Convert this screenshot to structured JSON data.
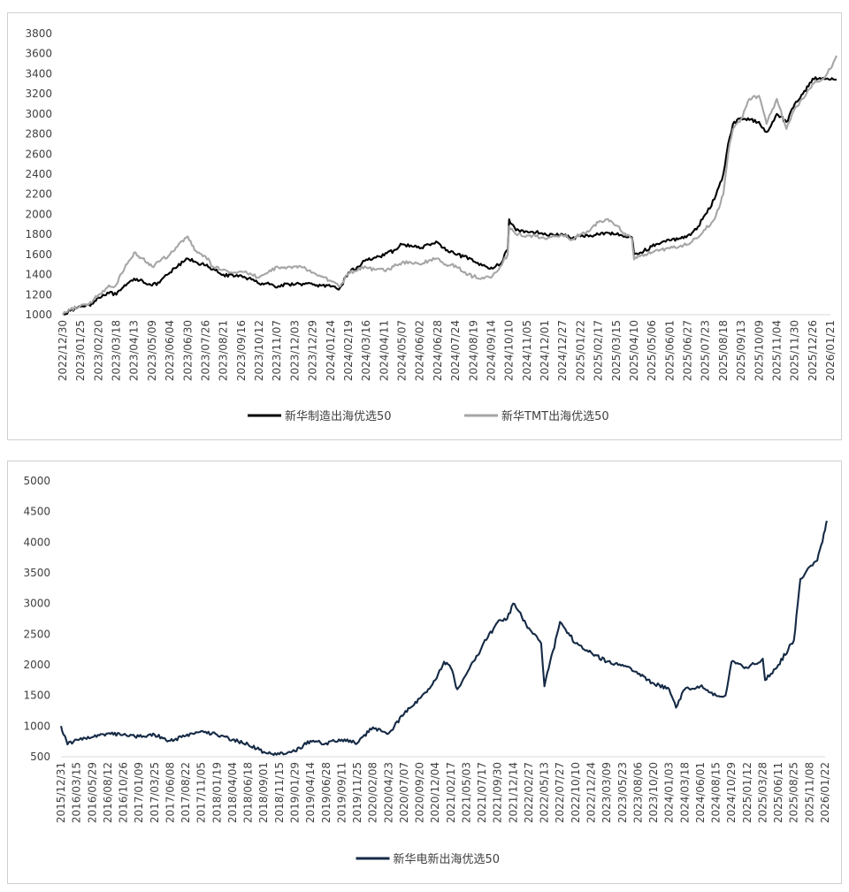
{
  "chart_data": [
    {
      "type": "line",
      "title": "",
      "xlabel": "",
      "ylabel": "",
      "ylim": [
        1000,
        3800
      ],
      "yticks": [
        1000,
        1200,
        1400,
        1600,
        1800,
        2000,
        2200,
        2400,
        2600,
        2800,
        3000,
        3200,
        3400,
        3600,
        3800
      ],
      "x_tick_labels": [
        "2022/12/30",
        "2023/01/25",
        "2023/02/20",
        "2023/03/18",
        "2023/04/13",
        "2023/05/09",
        "2023/06/04",
        "2023/06/30",
        "2023/07/26",
        "2023/08/21",
        "2023/09/16",
        "2023/10/12",
        "2023/11/07",
        "2023/12/03",
        "2023/12/29",
        "2024/01/24",
        "2024/02/19",
        "2024/03/16",
        "2024/04/11",
        "2024/05/07",
        "2024/06/02",
        "2024/06/28",
        "2024/07/24",
        "2024/08/19",
        "2024/09/14",
        "2024/10/10",
        "2024/11/05",
        "2024/12/01",
        "2024/12/27",
        "2025/01/22",
        "2025/02/17",
        "2025/03/15",
        "2025/04/10",
        "2025/05/06",
        "2025/06/01",
        "2025/06/27",
        "2025/07/23",
        "2025/08/18",
        "2025/09/13",
        "2025/10/09",
        "2025/11/04",
        "2025/11/30",
        "2025/12/26",
        "2026/01/21"
      ],
      "grid": false,
      "legend_position": "bottom",
      "series": [
        {
          "name": "新华制造出海优选50",
          "color": "#000000",
          "x": [
            "2022/12/30",
            "2023/01/10",
            "2023/01/25",
            "2023/02/10",
            "2023/02/20",
            "2023/03/05",
            "2023/03/18",
            "2023/04/01",
            "2023/04/13",
            "2023/04/25",
            "2023/05/09",
            "2023/05/20",
            "2023/06/04",
            "2023/06/15",
            "2023/06/30",
            "2023/07/10",
            "2023/07/26",
            "2023/08/05",
            "2023/08/21",
            "2023/09/05",
            "2023/09/16",
            "2023/10/01",
            "2023/10/12",
            "2023/10/25",
            "2023/11/07",
            "2023/11/20",
            "2023/12/03",
            "2023/12/15",
            "2023/12/29",
            "2024/01/10",
            "2024/01/24",
            "2024/02/05",
            "2024/02/19",
            "2024/03/05",
            "2024/03/16",
            "2024/03/28",
            "2024/04/11",
            "2024/04/25",
            "2024/05/07",
            "2024/05/20",
            "2024/06/02",
            "2024/06/15",
            "2024/06/28",
            "2024/07/10",
            "2024/07/24",
            "2024/08/05",
            "2024/08/19",
            "2024/09/01",
            "2024/09/14",
            "2024/09/27",
            "2024/10/08",
            "2024/10/10",
            "2024/10/20",
            "2024/11/05",
            "2024/11/18",
            "2024/12/01",
            "2024/12/15",
            "2024/12/27",
            "2025/01/10",
            "2025/01/22",
            "2025/02/05",
            "2025/02/17",
            "2025/03/01",
            "2025/03/15",
            "2025/03/28",
            "2025/04/07",
            "2025/04/10",
            "2025/04/20",
            "2025/05/06",
            "2025/05/20",
            "2025/06/01",
            "2025/06/15",
            "2025/06/27",
            "2025/07/10",
            "2025/07/23",
            "2025/08/05",
            "2025/08/18",
            "2025/08/25",
            "2025/09/01",
            "2025/09/13",
            "2025/09/25",
            "2025/10/09",
            "2025/10/20",
            "2025/11/04",
            "2025/11/18",
            "2025/11/30",
            "2025/12/12",
            "2025/12/26",
            "2026/01/10",
            "2026/01/21",
            "2026/01/30"
          ],
          "values": [
            1010,
            1040,
            1080,
            1110,
            1170,
            1220,
            1200,
            1290,
            1360,
            1340,
            1290,
            1320,
            1420,
            1480,
            1560,
            1530,
            1490,
            1450,
            1400,
            1380,
            1390,
            1350,
            1310,
            1320,
            1270,
            1310,
            1300,
            1310,
            1300,
            1290,
            1280,
            1250,
            1420,
            1480,
            1550,
            1570,
            1590,
            1640,
            1700,
            1690,
            1660,
            1700,
            1720,
            1640,
            1600,
            1580,
            1530,
            1490,
            1470,
            1500,
            1650,
            1950,
            1840,
            1830,
            1820,
            1810,
            1790,
            1800,
            1760,
            1780,
            1790,
            1800,
            1820,
            1800,
            1780,
            1770,
            1600,
            1620,
            1680,
            1720,
            1740,
            1760,
            1790,
            1850,
            2000,
            2150,
            2400,
            2700,
            2900,
            2960,
            2940,
            2920,
            2820,
            3000,
            2920,
            3100,
            3200,
            3350,
            3360,
            3340,
            3340
          ]
        },
        {
          "name": "新华TMT出海优选50",
          "color": "#a6a6a6",
          "x": [
            "2022/12/30",
            "2023/01/10",
            "2023/01/25",
            "2023/02/10",
            "2023/02/20",
            "2023/03/05",
            "2023/03/18",
            "2023/04/01",
            "2023/04/13",
            "2023/04/25",
            "2023/05/09",
            "2023/05/20",
            "2023/06/04",
            "2023/06/15",
            "2023/06/30",
            "2023/07/10",
            "2023/07/26",
            "2023/08/05",
            "2023/08/21",
            "2023/09/05",
            "2023/09/16",
            "2023/10/01",
            "2023/10/12",
            "2023/10/25",
            "2023/11/07",
            "2023/11/20",
            "2023/12/03",
            "2023/12/15",
            "2023/12/29",
            "2024/01/10",
            "2024/01/24",
            "2024/02/05",
            "2024/02/19",
            "2024/03/05",
            "2024/03/16",
            "2024/03/28",
            "2024/04/11",
            "2024/04/25",
            "2024/05/07",
            "2024/05/20",
            "2024/06/02",
            "2024/06/15",
            "2024/06/28",
            "2024/07/10",
            "2024/07/24",
            "2024/08/05",
            "2024/08/19",
            "2024/09/01",
            "2024/09/14",
            "2024/09/27",
            "2024/10/08",
            "2024/10/10",
            "2024/10/20",
            "2024/11/05",
            "2024/11/18",
            "2024/12/01",
            "2024/12/15",
            "2024/12/27",
            "2025/01/10",
            "2025/01/22",
            "2025/02/05",
            "2025/02/17",
            "2025/03/01",
            "2025/03/15",
            "2025/03/28",
            "2025/04/07",
            "2025/04/10",
            "2025/04/20",
            "2025/05/06",
            "2025/05/20",
            "2025/06/01",
            "2025/06/15",
            "2025/06/27",
            "2025/07/10",
            "2025/07/23",
            "2025/08/05",
            "2025/08/18",
            "2025/08/25",
            "2025/09/01",
            "2025/09/13",
            "2025/09/25",
            "2025/10/09",
            "2025/10/20",
            "2025/11/04",
            "2025/11/18",
            "2025/11/30",
            "2025/12/12",
            "2025/12/26",
            "2026/01/10",
            "2026/01/21",
            "2026/01/30"
          ],
          "values": [
            1000,
            1050,
            1090,
            1120,
            1200,
            1270,
            1300,
            1500,
            1620,
            1560,
            1480,
            1530,
            1600,
            1680,
            1780,
            1640,
            1580,
            1480,
            1450,
            1420,
            1430,
            1400,
            1370,
            1420,
            1480,
            1460,
            1480,
            1470,
            1420,
            1380,
            1340,
            1280,
            1410,
            1460,
            1470,
            1450,
            1440,
            1480,
            1520,
            1520,
            1500,
            1540,
            1560,
            1500,
            1490,
            1420,
            1380,
            1370,
            1370,
            1480,
            1600,
            1880,
            1800,
            1790,
            1780,
            1760,
            1780,
            1790,
            1750,
            1800,
            1840,
            1920,
            1950,
            1890,
            1810,
            1760,
            1550,
            1590,
            1620,
            1650,
            1660,
            1680,
            1700,
            1760,
            1850,
            1950,
            2200,
            2600,
            2850,
            2950,
            3150,
            3180,
            2900,
            3150,
            2850,
            3050,
            3150,
            3300,
            3350,
            3450,
            3580
          ]
        }
      ]
    },
    {
      "type": "line",
      "title": "",
      "xlabel": "",
      "ylabel": "",
      "ylim": [
        500,
        5000
      ],
      "yticks": [
        500,
        1000,
        1500,
        2000,
        2500,
        3000,
        3500,
        4000,
        4500,
        5000
      ],
      "x_tick_labels": [
        "2015/12/31",
        "2016/03/15",
        "2016/05/29",
        "2016/08/12",
        "2016/10/26",
        "2017/01/09",
        "2017/03/25",
        "2017/06/08",
        "2017/08/22",
        "2017/11/05",
        "2018/01/19",
        "2018/04/04",
        "2018/06/18",
        "2018/09/01",
        "2018/11/15",
        "2019/01/29",
        "2019/04/14",
        "2019/06/28",
        "2019/09/11",
        "2019/11/25",
        "2020/02/08",
        "2020/04/23",
        "2020/07/07",
        "2020/09/20",
        "2020/12/04",
        "2021/02/17",
        "2021/05/03",
        "2021/07/17",
        "2021/09/30",
        "2021/12/14",
        "2022/02/27",
        "2022/05/13",
        "2022/07/27",
        "2022/10/10",
        "2022/12/24",
        "2023/03/09",
        "2023/05/23",
        "2023/08/06",
        "2023/10/20",
        "2024/01/03",
        "2024/03/18",
        "2024/06/01",
        "2024/08/15",
        "2024/10/29",
        "2025/01/12",
        "2025/03/28",
        "2025/06/11",
        "2025/08/25",
        "2025/11/08",
        "2026/01/22"
      ],
      "grid": false,
      "legend_position": "bottom",
      "series": [
        {
          "name": "新华电新出海优选50",
          "color": "#152a45",
          "x": [
            "2015/12/31",
            "2016/01/31",
            "2016/03/15",
            "2016/05/29",
            "2016/08/12",
            "2016/10/26",
            "2017/01/09",
            "2017/03/25",
            "2017/06/08",
            "2017/08/22",
            "2017/11/05",
            "2018/01/19",
            "2018/04/04",
            "2018/06/18",
            "2018/09/01",
            "2018/11/15",
            "2019/01/29",
            "2019/04/14",
            "2019/06/28",
            "2019/09/11",
            "2019/11/25",
            "2020/02/08",
            "2020/04/23",
            "2020/07/07",
            "2020/09/20",
            "2020/12/04",
            "2021/01/15",
            "2021/02/17",
            "2021/03/20",
            "2021/05/03",
            "2021/07/17",
            "2021/09/30",
            "2021/11/15",
            "2021/12/14",
            "2022/02/27",
            "2022/04/27",
            "2022/05/13",
            "2022/07/27",
            "2022/10/10",
            "2022/12/24",
            "2023/03/09",
            "2023/05/23",
            "2023/08/06",
            "2023/10/20",
            "2024/01/03",
            "2024/02/05",
            "2024/03/18",
            "2024/06/01",
            "2024/08/15",
            "2024/09/30",
            "2024/10/29",
            "2025/01/12",
            "2025/03/28",
            "2025/04/08",
            "2025/06/11",
            "2025/08/25",
            "2025/09/25",
            "2025/11/08",
            "2025/12/15",
            "2026/01/22",
            "2026/01/30"
          ],
          "values": [
            1000,
            700,
            780,
            820,
            880,
            860,
            830,
            860,
            760,
            840,
            920,
            860,
            780,
            700,
            580,
            540,
            590,
            760,
            720,
            780,
            720,
            980,
            880,
            1200,
            1450,
            1750,
            2050,
            1950,
            1600,
            1850,
            2300,
            2700,
            2750,
            3000,
            2600,
            2350,
            1650,
            2700,
            2350,
            2200,
            2050,
            2000,
            1850,
            1700,
            1600,
            1300,
            1600,
            1650,
            1500,
            1500,
            2050,
            1950,
            2100,
            1750,
            2000,
            2400,
            3400,
            3600,
            3700,
            4200,
            4350
          ]
        }
      ]
    }
  ]
}
